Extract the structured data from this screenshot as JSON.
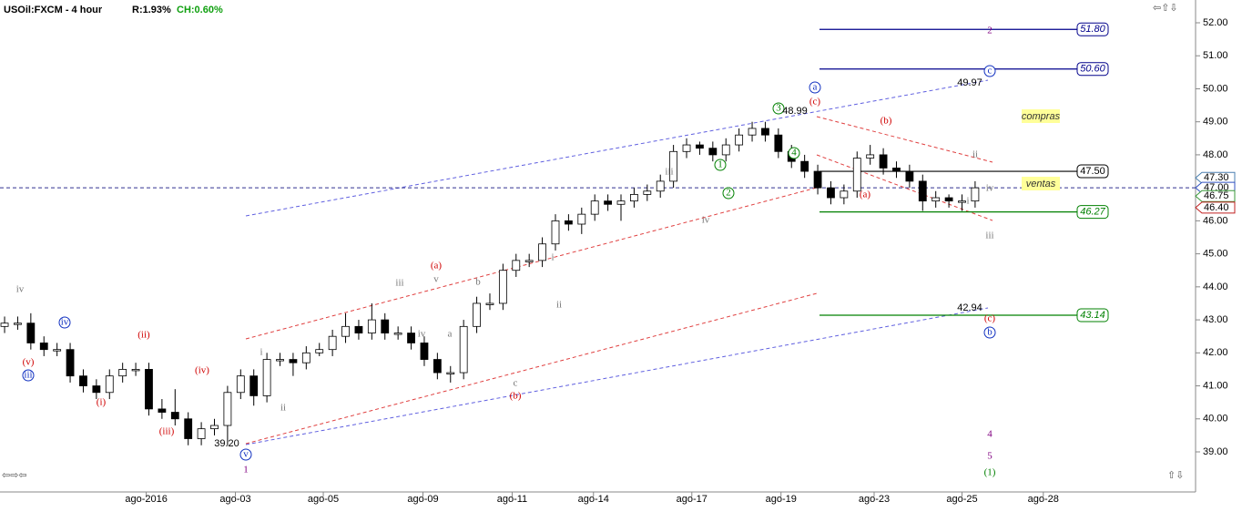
{
  "chart_data": {
    "type": "candlestick",
    "title": "USOil:FXCM - 4 hour",
    "range_text": "R:1.93%",
    "change_text": "CH:0.60%",
    "open": [
      42.8,
      42.9,
      42.9,
      42.3,
      42.1,
      42.1,
      41.3,
      41.0,
      40.8,
      41.3,
      41.5,
      41.5,
      40.3,
      40.2,
      40.0,
      39.4,
      39.7,
      39.8,
      40.8,
      41.3,
      40.7,
      41.8,
      41.8,
      41.7,
      42.0,
      42.1,
      42.5,
      42.8,
      42.6,
      43.0,
      42.6,
      42.6,
      42.3,
      41.8,
      41.4,
      41.4,
      42.8,
      43.5,
      43.5,
      44.5,
      44.8,
      44.8,
      45.3,
      46.0,
      45.9,
      46.2,
      46.6,
      46.5,
      46.6,
      46.8,
      46.9,
      47.2,
      48.1,
      48.3,
      48.2,
      48.0,
      48.3,
      48.6,
      48.8,
      48.6,
      48.1,
      47.8,
      47.5,
      47.0,
      46.7,
      46.9,
      47.9,
      48.0,
      47.6,
      47.5,
      47.2,
      46.6,
      46.7,
      46.6,
      46.6
    ],
    "high": [
      43.1,
      43.1,
      43.2,
      42.5,
      42.3,
      42.3,
      41.5,
      41.2,
      41.5,
      41.7,
      41.7,
      41.7,
      40.6,
      40.9,
      40.2,
      39.9,
      40.0,
      41.0,
      41.5,
      41.5,
      42.0,
      42.0,
      42.0,
      42.2,
      42.3,
      42.7,
      43.2,
      43.0,
      43.5,
      43.2,
      42.8,
      42.8,
      42.5,
      42.0,
      41.6,
      43.0,
      43.7,
      43.8,
      44.7,
      45.0,
      45.0,
      45.5,
      46.2,
      46.2,
      46.4,
      46.8,
      46.8,
      46.8,
      47.0,
      47.1,
      47.4,
      48.3,
      48.5,
      48.4,
      48.4,
      48.5,
      48.8,
      49.0,
      49.0,
      48.8,
      48.3,
      48.0,
      47.7,
      47.2,
      47.1,
      48.1,
      48.3,
      48.2,
      47.8,
      47.7,
      47.4,
      46.9,
      46.8,
      46.8,
      47.2
    ],
    "low": [
      42.6,
      42.7,
      42.1,
      41.9,
      41.9,
      41.1,
      40.8,
      40.6,
      40.6,
      41.1,
      41.3,
      40.1,
      40.0,
      39.8,
      39.2,
      39.2,
      39.5,
      39.2,
      40.6,
      40.4,
      40.5,
      41.6,
      41.3,
      41.5,
      41.9,
      41.9,
      42.3,
      42.4,
      42.4,
      42.4,
      42.4,
      42.1,
      41.6,
      41.2,
      41.1,
      41.2,
      42.6,
      43.3,
      43.3,
      44.3,
      44.6,
      44.6,
      45.1,
      45.7,
      45.6,
      46.0,
      46.3,
      46.0,
      46.4,
      46.6,
      46.7,
      47.0,
      47.9,
      48.0,
      47.8,
      47.8,
      48.1,
      48.4,
      48.4,
      47.9,
      47.6,
      47.3,
      46.8,
      46.5,
      46.5,
      46.7,
      47.7,
      47.4,
      47.3,
      47.0,
      46.3,
      46.4,
      46.4,
      46.3,
      46.4
    ],
    "close": [
      42.9,
      42.9,
      42.3,
      42.1,
      42.1,
      41.3,
      41.0,
      40.8,
      41.3,
      41.5,
      41.5,
      40.3,
      40.2,
      40.0,
      39.4,
      39.7,
      39.8,
      40.8,
      41.3,
      40.7,
      41.8,
      41.8,
      41.7,
      42.0,
      42.1,
      42.5,
      42.8,
      42.6,
      43.0,
      42.6,
      42.6,
      42.3,
      41.8,
      41.4,
      41.4,
      42.8,
      43.5,
      43.5,
      44.5,
      44.8,
      44.8,
      45.3,
      46.0,
      45.9,
      46.2,
      46.6,
      46.5,
      46.6,
      46.8,
      46.9,
      47.2,
      48.1,
      48.3,
      48.2,
      48.0,
      48.3,
      48.6,
      48.8,
      48.6,
      48.1,
      47.8,
      47.5,
      47.0,
      46.7,
      46.9,
      47.9,
      48.0,
      47.6,
      47.5,
      47.2,
      46.6,
      46.7,
      46.6,
      46.6,
      47.0
    ],
    "up_color": "#ffffff",
    "down_color": "#000000",
    "xlim": [
      -0.35,
      90.6
    ],
    "xticks": [
      {
        "value": 10.8,
        "label": "ago-2016"
      },
      {
        "value": 17.6,
        "label": "ago-03"
      },
      {
        "value": 24.3,
        "label": "ago-05"
      },
      {
        "value": 31.9,
        "label": "ago-09"
      },
      {
        "value": 38.7,
        "label": "ago-11"
      },
      {
        "value": 44.9,
        "label": "ago-14"
      },
      {
        "value": 52.4,
        "label": "ago-17"
      },
      {
        "value": 59.2,
        "label": "ago-19"
      },
      {
        "value": 66.3,
        "label": "ago-23"
      },
      {
        "value": 73.0,
        "label": "ago-25"
      },
      {
        "value": 79.2,
        "label": "ago-28"
      }
    ],
    "ylim": [
      38.3,
      52.7
    ],
    "yticks": [
      {
        "value": 39,
        "label": "39.00"
      },
      {
        "value": 40,
        "label": "40.00"
      },
      {
        "value": 41,
        "label": "41.00"
      },
      {
        "value": 42,
        "label": "42.00"
      },
      {
        "value": 43,
        "label": "43.00"
      },
      {
        "value": 44,
        "label": "44.00"
      },
      {
        "value": 45,
        "label": "45.00"
      },
      {
        "value": 46,
        "label": "46.00"
      },
      {
        "value": 47,
        "label": "47.00"
      },
      {
        "value": 48,
        "label": "48.00"
      },
      {
        "value": 49,
        "label": "49.00"
      },
      {
        "value": 50,
        "label": "50.00"
      },
      {
        "value": 51,
        "label": "51.00"
      },
      {
        "value": 52,
        "label": "52.00"
      }
    ],
    "levels": [
      {
        "value": 51.8,
        "label": "51.80",
        "color": "#00008b"
      },
      {
        "value": 50.6,
        "label": "50.60",
        "color": "#00008b"
      },
      {
        "value": 47.5,
        "label": "47.50",
        "color": "#000000"
      },
      {
        "value": 46.27,
        "label": "46.27",
        "color": "#008000"
      },
      {
        "value": 43.14,
        "label": "43.14",
        "color": "#008000"
      }
    ],
    "price_flags": [
      {
        "value": 47.3,
        "label": "47.30",
        "color": "#4a7fb0"
      },
      {
        "value": 47.0,
        "label": "47.00",
        "color": "#3050c0"
      },
      {
        "value": 46.75,
        "label": "46.75",
        "color": "#3a9a3a"
      },
      {
        "value": 46.4,
        "label": "46.40",
        "color": "#c02020"
      }
    ],
    "current_line": 47.0,
    "boxes": [
      "compras",
      "ventas"
    ],
    "annotations": [
      {
        "text": "iv",
        "color": "#777777"
      },
      {
        "text": "(v)",
        "color": "#d00000"
      },
      {
        "text": "iii",
        "color": "#1030c0"
      },
      {
        "text": "iv",
        "color": "#1030c0"
      },
      {
        "text": "(i)",
        "color": "#d00000"
      },
      {
        "text": "(ii)",
        "color": "#d00000"
      },
      {
        "text": "(iii)",
        "color": "#d00000"
      },
      {
        "text": "(iv)",
        "color": "#d00000"
      },
      {
        "text": "39.20",
        "color": "#000000"
      },
      {
        "text": "v",
        "color": "#1030c0"
      },
      {
        "text": "1",
        "color": "#800080"
      },
      {
        "text": "i",
        "color": "#777777"
      },
      {
        "text": "ii",
        "color": "#777777"
      },
      {
        "text": "iii",
        "color": "#777777"
      },
      {
        "text": "iv",
        "color": "#777777"
      },
      {
        "text": "(a)",
        "color": "#d00000"
      },
      {
        "text": "v",
        "color": "#777777"
      },
      {
        "text": "a",
        "color": "#777777"
      },
      {
        "text": "b",
        "color": "#777777"
      },
      {
        "text": "c",
        "color": "#777777"
      },
      {
        "text": "(b)",
        "color": "#d00000"
      },
      {
        "text": "i",
        "color": "#777777"
      },
      {
        "text": "ii",
        "color": "#777777"
      },
      {
        "text": "iii",
        "color": "#777777"
      },
      {
        "text": "iv",
        "color": "#777777"
      },
      {
        "text": "1",
        "color": "#008000"
      },
      {
        "text": "2",
        "color": "#008000"
      },
      {
        "text": "3",
        "color": "#008000"
      },
      {
        "text": "48.99",
        "color": "#000000"
      },
      {
        "text": "4",
        "color": "#008000"
      },
      {
        "text": "a",
        "color": "#1030c0"
      },
      {
        "text": "(c)",
        "color": "#d00000"
      },
      {
        "text": "(b)",
        "color": "#d00000"
      },
      {
        "text": "(a)",
        "color": "#d00000"
      },
      {
        "text": "2",
        "color": "#800080"
      },
      {
        "text": "c",
        "color": "#1030c0"
      },
      {
        "text": "49.97",
        "color": "#000000"
      },
      {
        "text": "ii",
        "color": "#777777"
      },
      {
        "text": "iv",
        "color": "#777777"
      },
      {
        "text": "i",
        "color": "#777777"
      },
      {
        "text": "iii",
        "color": "#777777"
      },
      {
        "text": "42.94",
        "color": "#000000"
      },
      {
        "text": "(c)",
        "color": "#d00000"
      },
      {
        "text": "b",
        "color": "#1030c0"
      },
      {
        "text": "4",
        "color": "#800080"
      },
      {
        "text": "5",
        "color": "#800080"
      },
      {
        "text": "(1)",
        "color": "#008000"
      }
    ]
  }
}
